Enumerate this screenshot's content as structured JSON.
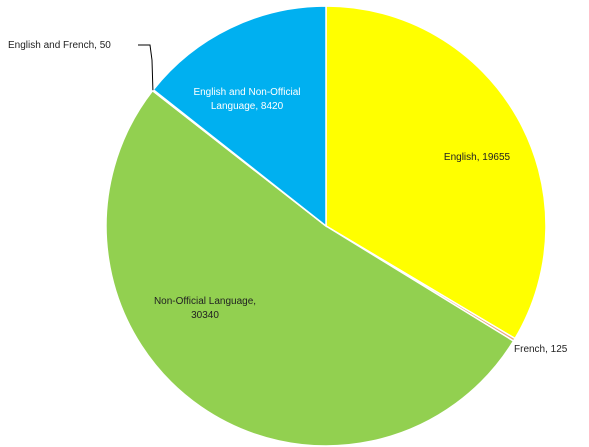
{
  "chart_data": {
    "type": "pie",
    "title": "",
    "series": [
      {
        "values": [
          19655,
          125,
          30340,
          50,
          8420
        ],
        "colors": [
          "#ffff00",
          "#e8a87c",
          "#92d050",
          "#ff6b3d",
          "#00b0f0"
        ]
      }
    ],
    "categories": [
      "English",
      "French",
      "Non-Official Language",
      "English and French",
      "English and Non-Official Language"
    ],
    "slice_labels": [
      [
        "English, 19655"
      ],
      [
        "French, 125"
      ],
      [
        "Non-Official Language,",
        "30340"
      ],
      [
        "English and French, 50"
      ],
      [
        "English and Non-Official",
        "Language, 8420"
      ]
    ],
    "legend": "none"
  }
}
